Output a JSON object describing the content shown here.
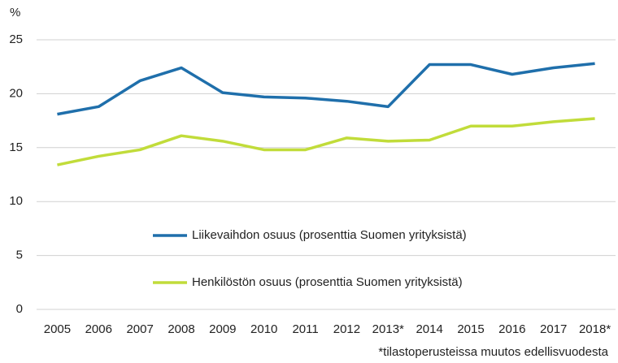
{
  "chart_data": {
    "type": "line",
    "ylabel": "%",
    "note": "*tilastoperusteissa muutos edellisvuodesta",
    "categories": [
      "2005",
      "2006",
      "2007",
      "2008",
      "2009",
      "2010",
      "2011",
      "2012",
      "2013*",
      "2014",
      "2015",
      "2016",
      "2017",
      "2018*"
    ],
    "series": [
      {
        "name": "Liikevaihdon osuus (prosenttia Suomen yrityksistä)",
        "color": "#1f6fab",
        "values": [
          18.1,
          18.8,
          21.2,
          22.4,
          20.1,
          19.7,
          19.6,
          19.3,
          18.8,
          22.7,
          22.7,
          21.8,
          22.4,
          22.8
        ]
      },
      {
        "name": "Henkilöstön osuus (prosenttia Suomen yrityksistä)",
        "color": "#c1dc3a",
        "values": [
          13.4,
          14.2,
          14.8,
          16.1,
          15.6,
          14.8,
          14.8,
          15.9,
          15.6,
          15.7,
          17.0,
          17.0,
          17.4,
          17.7
        ]
      }
    ],
    "ylim": [
      0,
      25
    ],
    "yticks": [
      0,
      5,
      10,
      15,
      20,
      25
    ],
    "grid": true
  }
}
